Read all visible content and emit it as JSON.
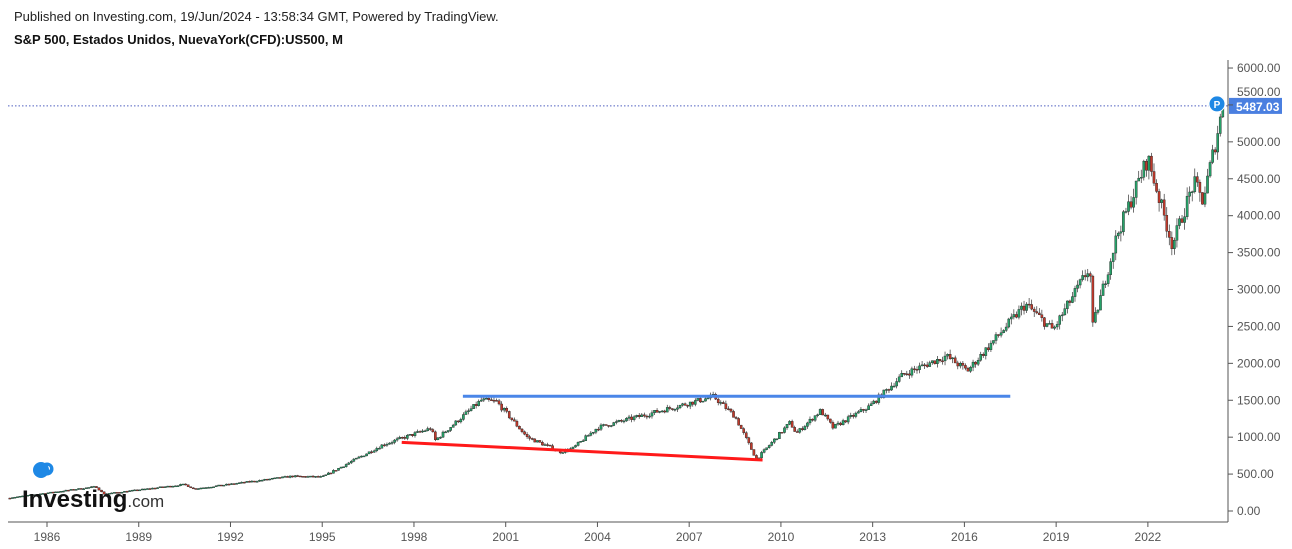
{
  "header": {
    "published": "Published on Investing.com, 19/Jun/2024 - 13:58:34 GMT, Powered by TradingView.",
    "title": "S&P 500, Estados Unidos, NuevaYork(CFD):US500, M"
  },
  "logo": {
    "text": "Investing",
    "suffix": ".com"
  },
  "chart_data": {
    "type": "candlestick",
    "title": "S&P 500, Estados Unidos, NuevaYork(CFD):US500, M",
    "interval": "monthly",
    "ylim": [
      0,
      6000
    ],
    "xlim": [
      1984.7,
      2024.6
    ],
    "y_ticks": [
      "0.00",
      "500.00",
      "1000.00",
      "1500.00",
      "2000.00",
      "2500.00",
      "3000.00",
      "3500.00",
      "4000.00",
      "4500.00",
      "5000.00",
      "5500.00",
      "6000.00"
    ],
    "x_ticks": [
      "1986",
      "1989",
      "1992",
      "1995",
      "1998",
      "2001",
      "2004",
      "2007",
      "2010",
      "2013",
      "2016",
      "2019",
      "2022"
    ],
    "last_price": "5487.03",
    "last_price_value": 5487.03,
    "marker": "P",
    "colors": {
      "up": "#26a269",
      "down": "#c0392b",
      "price_label": "#4a7fe0",
      "support": "#ff1a1a",
      "resistance": "#4a86e8"
    },
    "anchors": [
      [
        1984.7,
        175
      ],
      [
        1987.6,
        330
      ],
      [
        1987.85,
        230
      ],
      [
        1990.5,
        360
      ],
      [
        1990.8,
        300
      ],
      [
        1994,
        470
      ],
      [
        1995,
        460
      ],
      [
        1997,
        900
      ],
      [
        1998.55,
        1120
      ],
      [
        1998.7,
        960
      ],
      [
        2000.2,
        1500
      ],
      [
        2000.7,
        1480
      ],
      [
        2001.7,
        1000
      ],
      [
        2002.8,
        800
      ],
      [
        2003.2,
        850
      ],
      [
        2004,
        1130
      ],
      [
        2007.8,
        1550
      ],
      [
        2008.5,
        1280
      ],
      [
        2009.2,
        700
      ],
      [
        2010.3,
        1200
      ],
      [
        2010.5,
        1050
      ],
      [
        2011.3,
        1360
      ],
      [
        2011.7,
        1130
      ],
      [
        2012.9,
        1420
      ],
      [
        2014,
        1850
      ],
      [
        2015.4,
        2100
      ],
      [
        2016.1,
        1900
      ],
      [
        2018,
        2800
      ],
      [
        2018.9,
        2450
      ],
      [
        2020.1,
        3300
      ],
      [
        2020.2,
        2500
      ],
      [
        2021,
        3750
      ],
      [
        2022,
        4780
      ],
      [
        2022.8,
        3600
      ],
      [
        2023.5,
        4450
      ],
      [
        2023.8,
        4200
      ],
      [
        2024.46,
        5487
      ]
    ],
    "trendlines": [
      {
        "name": "support",
        "points": [
          [
            1997.6,
            930
          ],
          [
            2009.4,
            690
          ]
        ]
      },
      {
        "name": "resistance",
        "points": [
          [
            1999.6,
            1555
          ],
          [
            2017.5,
            1555
          ]
        ]
      }
    ]
  }
}
